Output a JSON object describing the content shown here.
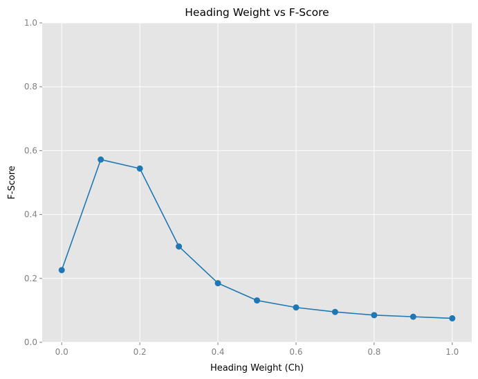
{
  "chart_data": {
    "type": "line",
    "title": "Heading Weight vs F-Score",
    "xlabel": "Heading Weight (Ch)",
    "ylabel": "F-Score",
    "xlim": [
      -0.05,
      1.05
    ],
    "ylim": [
      0.0,
      1.0
    ],
    "x_ticks": [
      "0.0",
      "0.2",
      "0.4",
      "0.6",
      "0.8",
      "1.0"
    ],
    "y_ticks": [
      "0.0",
      "0.2",
      "0.4",
      "0.6",
      "0.8",
      "1.0"
    ],
    "grid": true,
    "style": "ggplot",
    "series": [
      {
        "color": "#1f77b4",
        "marker": "circle",
        "x": [
          0.0,
          0.1,
          0.2,
          0.3,
          0.4,
          0.5,
          0.6,
          0.7,
          0.8,
          0.9,
          1.0
        ],
        "y": [
          0.226,
          0.572,
          0.544,
          0.3,
          0.185,
          0.131,
          0.109,
          0.095,
          0.085,
          0.08,
          0.075
        ]
      }
    ]
  }
}
